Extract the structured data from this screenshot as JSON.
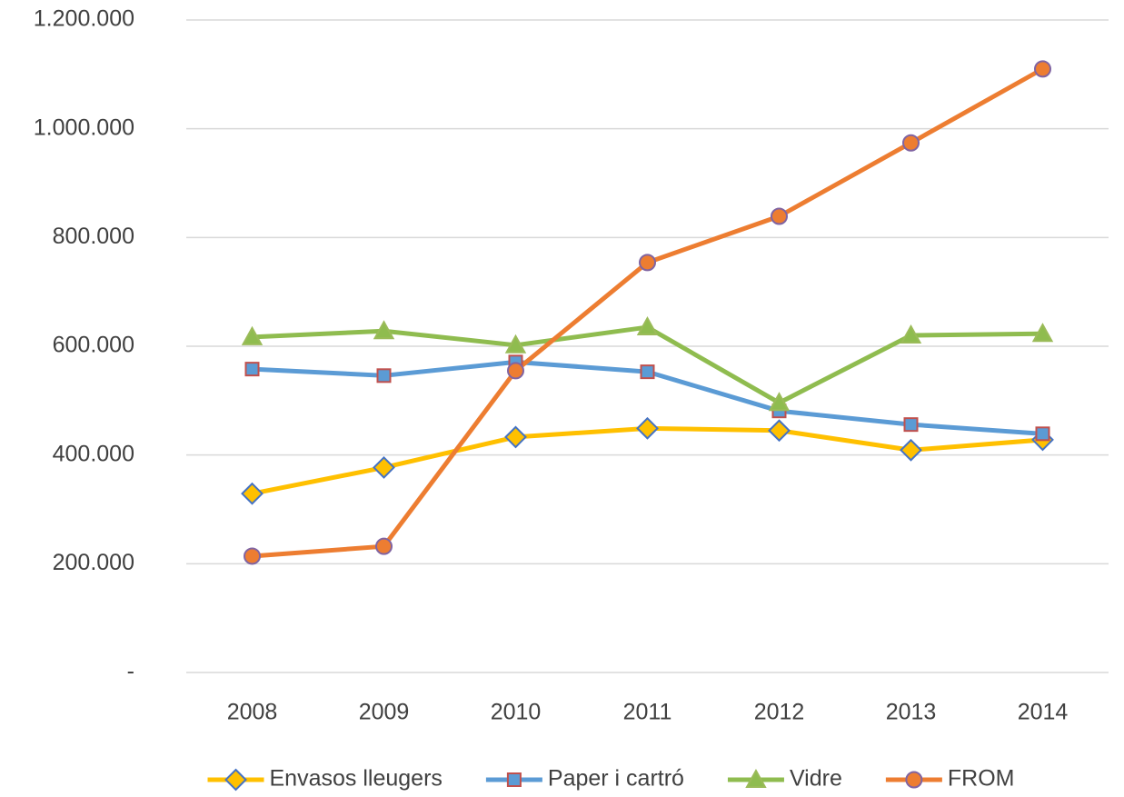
{
  "chart_data": {
    "type": "line",
    "categories": [
      "2008",
      "2009",
      "2010",
      "2011",
      "2012",
      "2013",
      "2014"
    ],
    "series": [
      {
        "name": "Envasos lleugers",
        "color": "#ffc000",
        "marker": "diamond",
        "marker_edge": "#4472c4",
        "values": [
          329000,
          377000,
          433000,
          449000,
          445000,
          409000,
          428000
        ]
      },
      {
        "name": "Paper i cartró",
        "color": "#5b9bd5",
        "marker": "square",
        "marker_edge": "#c0504d",
        "values": [
          558000,
          546000,
          571000,
          553000,
          481000,
          456000,
          439000
        ]
      },
      {
        "name": "Vidre",
        "color": "#8fbc4f",
        "marker": "triangle",
        "marker_edge": "#9bbb59",
        "values": [
          617000,
          628000,
          602000,
          635000,
          496000,
          620000,
          623000
        ]
      },
      {
        "name": "FROM",
        "color": "#ed7d31",
        "marker": "circle",
        "marker_edge": "#8064a2",
        "values": [
          214000,
          232000,
          555000,
          754000,
          839000,
          974000,
          1110000
        ]
      }
    ],
    "ylim": [
      0,
      1200000
    ],
    "yticks": [
      {
        "value": 0,
        "label": "-"
      },
      {
        "value": 200000,
        "label": "200.000"
      },
      {
        "value": 400000,
        "label": "400.000"
      },
      {
        "value": 600000,
        "label": "600.000"
      },
      {
        "value": 800000,
        "label": "800.000"
      },
      {
        "value": 1000000,
        "label": "1.000.000"
      },
      {
        "value": 1200000,
        "label": "1.200.000"
      }
    ],
    "grid": true,
    "legend": "bottom"
  }
}
